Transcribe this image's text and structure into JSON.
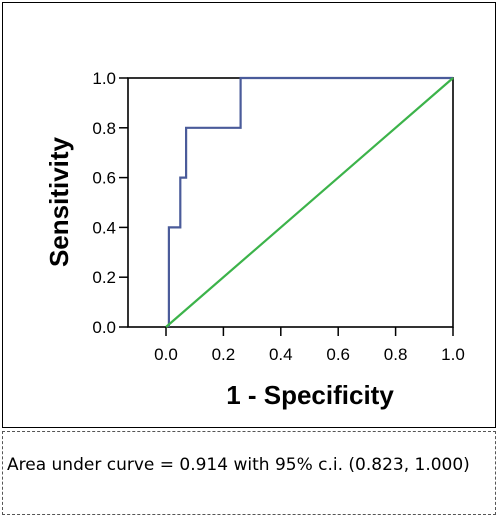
{
  "chart_data": {
    "type": "line",
    "title": "",
    "xlabel": "1 - Specificity",
    "ylabel": "Sensitivity",
    "xlim": [
      0,
      1
    ],
    "ylim": [
      0,
      1
    ],
    "xticks": [
      "0.0",
      "0.2",
      "0.4",
      "0.6",
      "0.8",
      "1.0"
    ],
    "yticks": [
      "0.0",
      "0.2",
      "0.4",
      "0.6",
      "0.8",
      "1.0"
    ],
    "grid": false,
    "series": [
      {
        "color": "#4a5b9a",
        "points": [
          [
            0.01,
            0.0
          ],
          [
            0.01,
            0.4
          ],
          [
            0.05,
            0.4
          ],
          [
            0.05,
            0.6
          ],
          [
            0.07,
            0.6
          ],
          [
            0.07,
            0.8
          ],
          [
            0.26,
            0.8
          ],
          [
            0.26,
            1.0
          ],
          [
            1.0,
            1.0
          ]
        ]
      },
      {
        "color": "#3cb34a",
        "points": [
          [
            0.0,
            0.0
          ],
          [
            1.0,
            1.0
          ]
        ]
      }
    ]
  },
  "caption": {
    "text": "Area under curve = 0.914 with 95% c.i. (0.823, 1.000)"
  }
}
